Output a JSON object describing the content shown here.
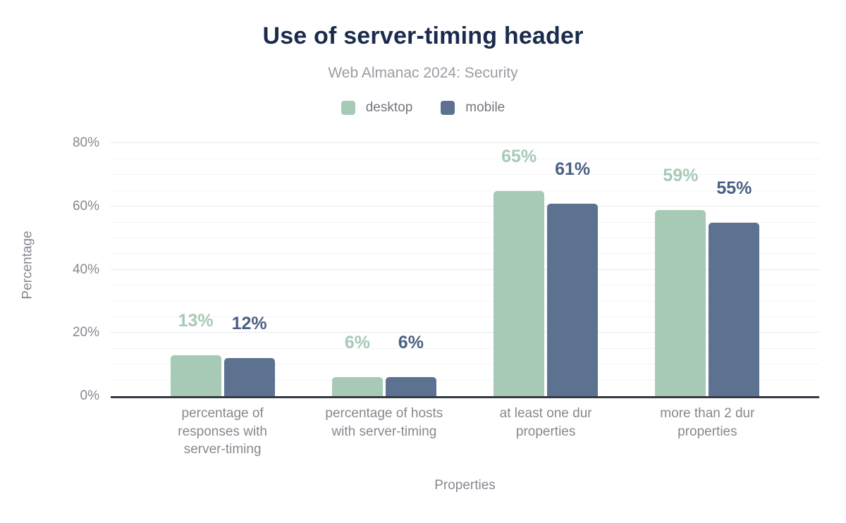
{
  "figure": {
    "title": "Use of server-timing header",
    "subtitle": "Web Almanac 2024: Security"
  },
  "chart_data": {
    "type": "bar",
    "title": "Use of server-timing header",
    "subtitle": "Web Almanac 2024: Security",
    "categories": [
      "percentage of responses with server-timing",
      "percentage of hosts with server-timing",
      "at least one dur properties",
      "more than 2 dur properties"
    ],
    "category_lines": [
      [
        "percentage of",
        "responses with",
        "server-timing"
      ],
      [
        "percentage of hosts",
        "with server-timing"
      ],
      [
        "at least one dur",
        "properties"
      ],
      [
        "more than 2 dur",
        "properties"
      ]
    ],
    "series": [
      {
        "name": "desktop",
        "color": "#a6cab6",
        "label_color": "#a6cab6",
        "values": [
          13,
          6,
          65,
          59
        ]
      },
      {
        "name": "mobile",
        "color": "#5d7190",
        "label_color": "#4b6183",
        "values": [
          12,
          6,
          61,
          55
        ]
      }
    ],
    "value_label_suffix": "%",
    "xlabel": "Properties",
    "ylabel": "Percentage",
    "ylim": [
      0,
      83
    ],
    "yticks": [
      0,
      20,
      40,
      60,
      80
    ],
    "ytick_suffix": "%",
    "grid": {
      "minor_step": 5,
      "major_step": 20,
      "max": 80,
      "on": true
    },
    "legend_position": "top",
    "colors": {
      "title": "#1a2b4c",
      "subtitle": "#999da2",
      "axis_text": "#84898f",
      "legend_text": "#72767c",
      "axis_line": "#343a42",
      "grid_minor": "#f3f4f5",
      "grid_major": "#e5e8ea",
      "background": "#ffffff"
    }
  }
}
